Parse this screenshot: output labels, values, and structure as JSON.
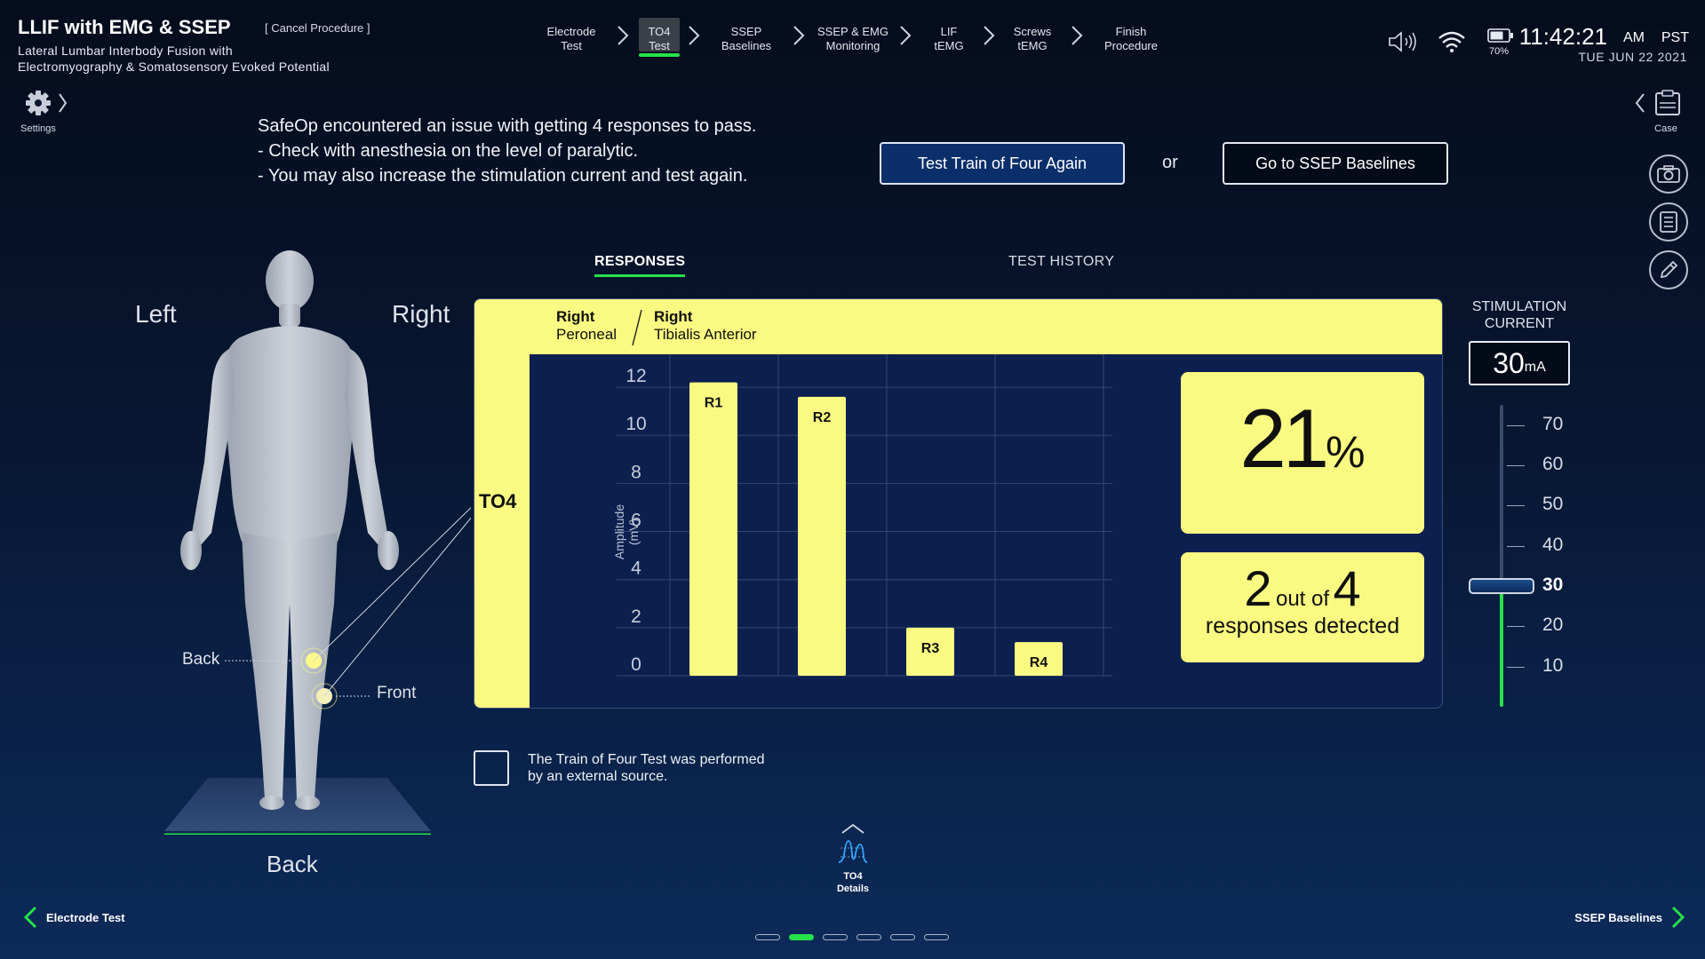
{
  "header": {
    "title": "LLIF with EMG & SSEP",
    "cancel_label": "[ Cancel Procedure ]",
    "subtitle_line1": "Lateral Lumbar Interbody Fusion with",
    "subtitle_line2": "Electromyography & Somatosensory Evoked Potential"
  },
  "steps": [
    {
      "line1": "Electrode",
      "line2": "Test",
      "active": false
    },
    {
      "line1": "TO4",
      "line2": "Test",
      "active": true
    },
    {
      "line1": "SSEP",
      "line2": "Baselines",
      "active": false
    },
    {
      "line1": "SSEP & EMG",
      "line2": "Monitoring",
      "active": false
    },
    {
      "line1": "LIF",
      "line2": "tEMG",
      "active": false
    },
    {
      "line1": "Screws",
      "line2": "tEMG",
      "active": false
    },
    {
      "line1": "Finish",
      "line2": "Procedure",
      "active": false
    }
  ],
  "status": {
    "battery": "70%",
    "time": "11:42:21",
    "ampm": "AM",
    "timezone": "PST",
    "date": "TUE   JUN 22   2021"
  },
  "sidebar": {
    "settings_label": "Settings",
    "case_label": "Case"
  },
  "message": {
    "line1": "SafeOp encountered an issue with getting 4 responses to pass.",
    "line2": "- Check with anesthesia on the level of paralytic.",
    "line3": "- You may also increase the stimulation current and test again."
  },
  "actions": {
    "primary": "Test Train of Four Again",
    "or": "or",
    "secondary": "Go to SSEP Baselines"
  },
  "body_figure": {
    "left_label": "Left",
    "right_label": "Right",
    "back_label": "Back",
    "front_label": "Front",
    "bottom_label": "Back"
  },
  "tabs": {
    "responses": "RESPONSES",
    "history": "TEST HISTORY"
  },
  "panel": {
    "muscle1_side": "Right",
    "muscle1_name": "Peroneal",
    "muscle2_side": "Right",
    "muscle2_name": "Tibialis Anterior",
    "row_label": "TO4",
    "ylabel": "Amplitude",
    "yunit": "(mV)",
    "percent_value": "21",
    "percent_sign": "%",
    "detected_count": "2",
    "detected_of": "out of",
    "detected_total": "4",
    "detected_label": "responses detected"
  },
  "chart_data": {
    "type": "bar",
    "categories": [
      "R1",
      "R2",
      "R3",
      "R4"
    ],
    "values": [
      12.2,
      11.6,
      2.0,
      1.4
    ],
    "ylabel": "Amplitude (mV)",
    "ylim": [
      0,
      13
    ],
    "yticks": [
      0,
      2,
      4,
      6,
      8,
      10,
      12
    ],
    "bar_color": "#fafa82",
    "grid": true
  },
  "stimulation": {
    "label_line1": "STIMULATION",
    "label_line2": "CURRENT",
    "value": "30",
    "unit": "mA",
    "ticks": [
      "70",
      "60",
      "50",
      "40",
      "30",
      "20",
      "10"
    ],
    "current_level": 30,
    "range": [
      0,
      75
    ]
  },
  "external": {
    "line1": "The Train of Four Test was performed",
    "line2": "by an external source."
  },
  "details": {
    "line1": "TO4",
    "line2": "Details"
  },
  "nav": {
    "prev": "Electrode Test",
    "next": "SSEP Baselines"
  },
  "pager": {
    "count": 6,
    "active": 1
  },
  "colors": {
    "accent_green": "#27e04a",
    "highlight_yellow": "#fafa82",
    "primary_blue": "#0b2f6a"
  }
}
